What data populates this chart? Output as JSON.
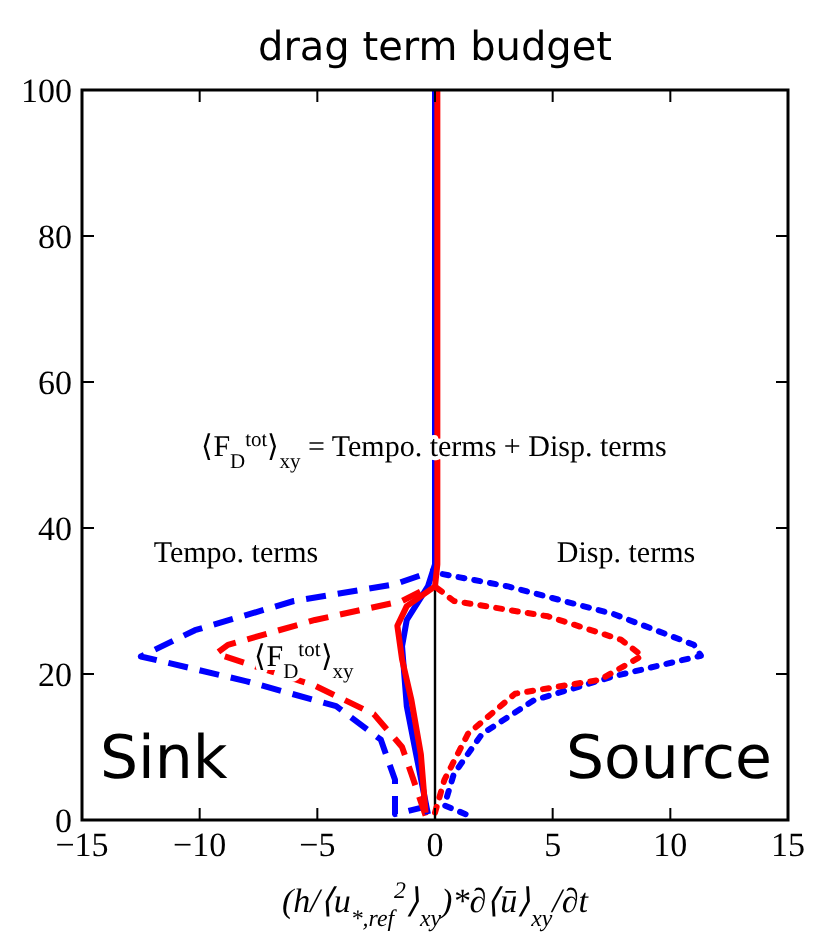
{
  "chart_data": {
    "type": "line",
    "title": "drag term budget",
    "xlabel": "(h/⟨u$_{*,ref}$$^{2}$⟩$_{xy}$)*∂⟨ū⟩$_{xy}$/∂t",
    "xlim": [
      -15,
      15
    ],
    "xticks": [
      -15,
      -10,
      -5,
      0,
      5,
      10,
      15
    ],
    "ylim": [
      0,
      100
    ],
    "yticks": [
      0,
      20,
      40,
      60,
      80,
      100
    ],
    "grid": false,
    "ref_lines": [
      {
        "axis": "x",
        "value": 0,
        "color": "#000000"
      }
    ],
    "annotations": [
      "⟨F$_{D}$$^{tot}$⟩$_{xy}$ = Tempo. terms + Disp. terms",
      "Tempo. terms",
      "Disp. terms",
      "⟨F$_{D}$$^{tot}$⟩$_{xy}$",
      "Sink",
      "Source"
    ],
    "series": [
      {
        "color": "#0000ff",
        "line_style": "dashed",
        "x": [
          -0.3,
          -1.7,
          -1.7,
          -2.3,
          -4.2,
          -8,
          -12.5,
          -10.2,
          -6,
          -1.7,
          0
        ],
        "values": [
          1.9,
          0.8,
          5.5,
          11,
          15.6,
          19,
          22.4,
          26,
          30,
          32.3,
          34.2
        ]
      },
      {
        "color": "#ff0000",
        "line_style": "dashed",
        "x": [
          -0.4,
          -1,
          -1.4,
          -2.6,
          -5.1,
          -9.3,
          -8.8,
          -5.1,
          -1.4,
          -0.2
        ],
        "values": [
          0.6,
          6.3,
          10,
          14.5,
          18.4,
          22.8,
          24,
          27.4,
          30,
          32
        ]
      },
      {
        "color": "#0000ff",
        "line_style": "dotted",
        "x": [
          1.3,
          0.4,
          0.8,
          2,
          4.2,
          7.6,
          11.3,
          11,
          7.6,
          3.1,
          0.3
        ],
        "values": [
          0.8,
          2,
          6.3,
          11.8,
          16.4,
          19.7,
          22.5,
          24,
          28.2,
          32,
          33.7
        ]
      },
      {
        "color": "#ff0000",
        "line_style": "dotted",
        "x": [
          0,
          0.4,
          1.4,
          3.4,
          7,
          8.8,
          7.9,
          4.8,
          0.8,
          0
        ],
        "values": [
          1,
          5.5,
          11.8,
          17.3,
          19.2,
          22.5,
          24.7,
          27.9,
          30,
          32
        ]
      },
      {
        "color": "#0000ff",
        "line_style": "solid",
        "x": [
          -0.3,
          -0.8,
          -1.2,
          -1.4,
          -1.2,
          -0.3,
          0,
          0
        ],
        "values": [
          0.8,
          9,
          15.6,
          23.8,
          27.4,
          32,
          35,
          100
        ]
      },
      {
        "color": "#ff0000",
        "line_style": "solid",
        "x": [
          -0.4,
          -0.6,
          -1,
          -1.4,
          -1.6,
          -1.2,
          0,
          0.1,
          0.1
        ],
        "values": [
          1,
          9,
          16.4,
          22,
          26.6,
          29.3,
          32,
          35,
          100
        ]
      }
    ]
  }
}
